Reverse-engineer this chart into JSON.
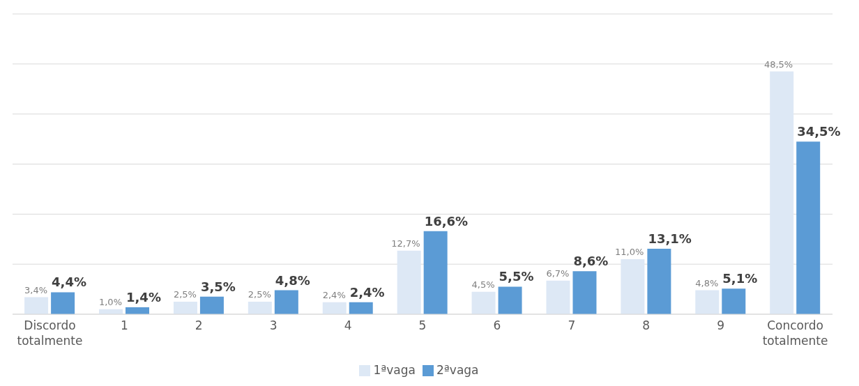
{
  "chart_data": {
    "type": "bar",
    "categories": [
      "Discordo totalmente",
      "1",
      "2",
      "3",
      "4",
      "5",
      "6",
      "7",
      "8",
      "9",
      "Concordo totalmente"
    ],
    "series": [
      {
        "name": "1ªvaga",
        "color": "#dde8f5",
        "values": [
          3.4,
          1.0,
          2.5,
          2.5,
          2.4,
          12.7,
          4.5,
          6.7,
          11.0,
          4.8,
          48.5
        ],
        "value_labels": [
          "3,4%",
          "1,0%",
          "2,5%",
          "2,5%",
          "2,4%",
          "12,7%",
          "4,5%",
          "6,7%",
          "11,0%",
          "4,8%",
          "48,5%"
        ]
      },
      {
        "name": "2ªvaga",
        "color": "#5b9bd5",
        "values": [
          4.4,
          1.4,
          3.5,
          4.8,
          2.4,
          16.6,
          5.5,
          8.6,
          13.1,
          5.1,
          34.5
        ],
        "value_labels": [
          "4,4%",
          "1,4%",
          "3,5%",
          "4,8%",
          "2,4%",
          "16,6%",
          "5,5%",
          "8,6%",
          "13,1%",
          "5,1%",
          "34,5%"
        ]
      }
    ],
    "ylim": [
      0,
      60
    ],
    "yticks": [
      {
        "value": 0,
        "label": null
      },
      {
        "value": 10,
        "label": null
      },
      {
        "value": 20,
        "label": null
      },
      {
        "value": 30,
        "label": null
      },
      {
        "value": 40,
        "label": null
      },
      {
        "value": 50,
        "label": null
      },
      {
        "value": 60,
        "label": null
      }
    ],
    "grid": "y",
    "legend": "bottom",
    "tick_labels": "x"
  }
}
